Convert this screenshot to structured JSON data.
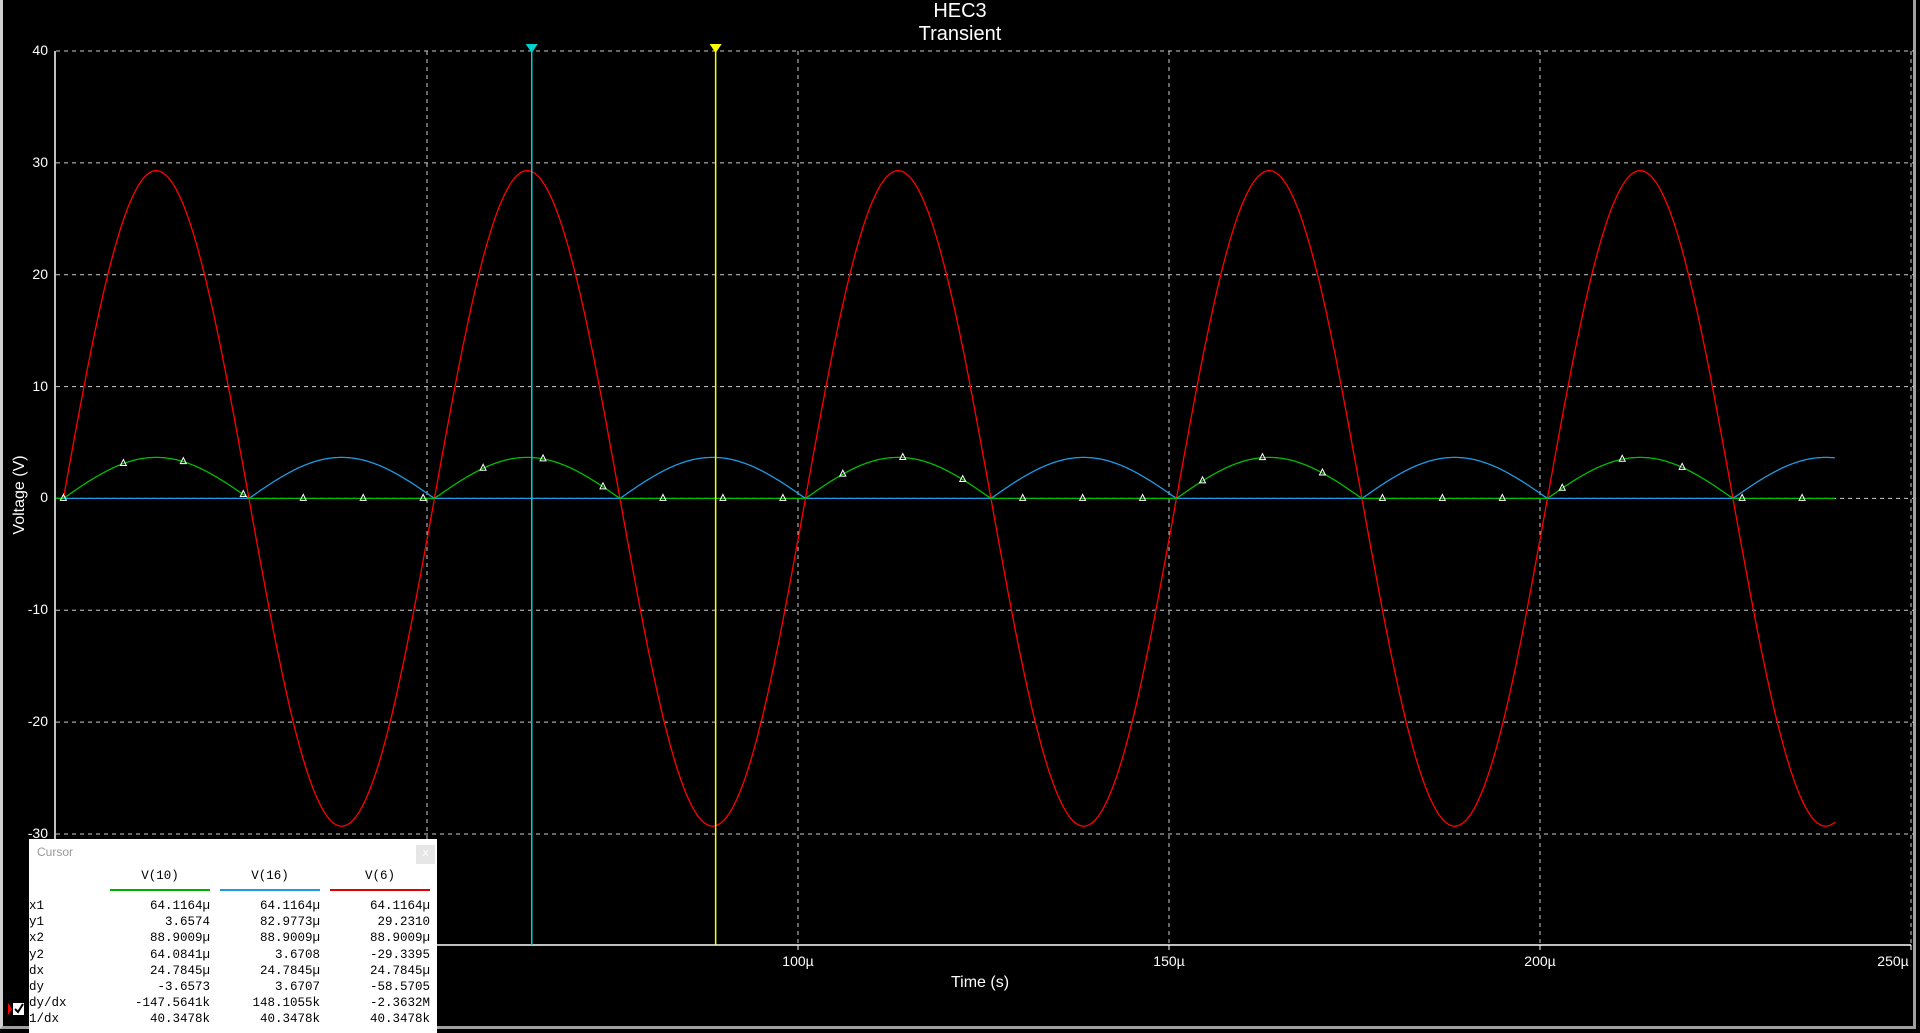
{
  "chart_data": {
    "type": "line",
    "title": "HEC3",
    "subtitle": "Transient",
    "xlabel": "Time (s)",
    "ylabel": "Voltage (V)",
    "xlim": [
      0,
      0.00025
    ],
    "ylim": [
      -30,
      40
    ],
    "grid": true,
    "y_ticks": [
      "40",
      "30",
      "20",
      "10",
      "0",
      "-10",
      "-20",
      "-30"
    ],
    "y_tick_values": [
      40,
      30,
      20,
      10,
      0,
      -10,
      -20,
      -30
    ],
    "x_ticks": [
      "100µ",
      "150µ",
      "200µ",
      "250µ"
    ],
    "x_tick_values": [
      0.0001,
      0.00015,
      0.0002,
      0.00025
    ],
    "x_grid_values": [
      5e-05,
      0.0001,
      0.00015,
      0.0002,
      0.00025
    ],
    "series": [
      {
        "name": "V(10)",
        "color": "#00c000",
        "shape": "half-wave rectified sine (positive half)",
        "amplitude": 3.67,
        "frequency_hz": 20000,
        "t_start": 0,
        "t_end": 0.00024,
        "phase_delay_s": 1e-06,
        "markers": "triangle"
      },
      {
        "name": "V(16)",
        "color": "#1e9be6",
        "shape": "half-wave rectified sine (negative half)",
        "amplitude": 3.67,
        "frequency_hz": 20000,
        "t_start": 0,
        "t_end": 0.00024,
        "phase_delay_s": 1e-06
      },
      {
        "name": "V(6)",
        "color": "#ff0000",
        "shape": "sine",
        "amplitude": 29.3,
        "frequency_hz": 20000,
        "t_start": 0,
        "t_end": 0.00024,
        "phase_delay_s": 1e-06
      }
    ],
    "cursors": [
      {
        "name": "cursor-1",
        "x": 6.41164e-05,
        "color": "#00d0d0",
        "label": "1"
      },
      {
        "name": "cursor-2",
        "x": 8.89009e-05,
        "color": "#ffff00",
        "label": "2"
      }
    ]
  },
  "cursor_panel": {
    "title": "Cursor",
    "close": "x",
    "columns": [
      {
        "name": "V(10)",
        "color": "#00b000"
      },
      {
        "name": "V(16)",
        "color": "#1e9be6"
      },
      {
        "name": "V(6)",
        "color": "#e00000"
      }
    ],
    "rows": [
      {
        "label": "x1",
        "values": [
          "64.1164µ",
          "64.1164µ",
          "64.1164µ"
        ]
      },
      {
        "label": "y1",
        "values": [
          "3.6574",
          "82.9773µ",
          "29.2310"
        ]
      },
      {
        "label": "x2",
        "values": [
          "88.9009µ",
          "88.9009µ",
          "88.9009µ"
        ]
      },
      {
        "label": "y2",
        "values": [
          "64.0841µ",
          "3.6708",
          "-29.3395"
        ]
      },
      {
        "label": "dx",
        "values": [
          "24.7845µ",
          "24.7845µ",
          "24.7845µ"
        ]
      },
      {
        "label": "dy",
        "values": [
          "-3.6573",
          "3.6707",
          "-58.5705"
        ]
      },
      {
        "label": "dy/dx",
        "values": [
          "-147.5641k",
          "148.1055k",
          "-2.3632M"
        ]
      },
      {
        "label": "1/dx",
        "values": [
          "40.3478k",
          "40.3478k",
          "40.3478k"
        ]
      }
    ]
  }
}
